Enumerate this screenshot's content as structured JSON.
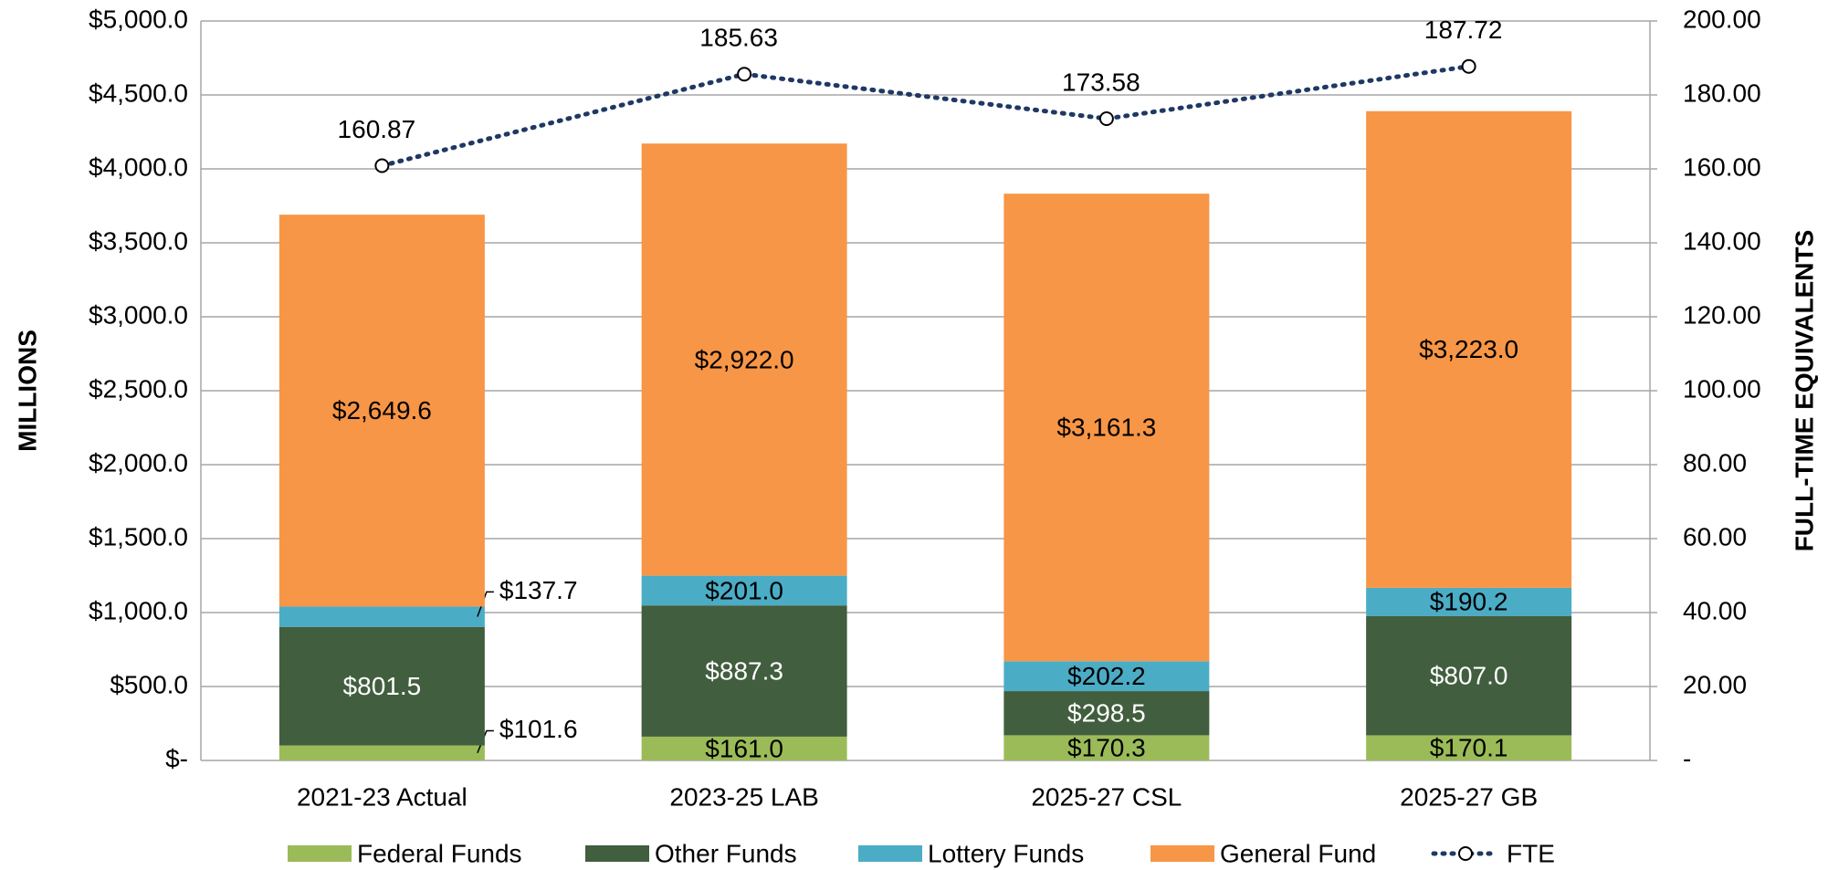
{
  "chart_data": {
    "type": "bar",
    "stacked": true,
    "categories": [
      "2021-23 Actual",
      "2023-25 LAB",
      "2025-27 CSL",
      "2025-27 GB"
    ],
    "ylabel": "MILLIONS",
    "y2label": "FULL-TIME EQUIVALENTS",
    "ylim": [
      0,
      5000
    ],
    "yticks": [
      {
        "value": 0,
        "label": "$-"
      },
      {
        "value": 500,
        "label": "$500.0"
      },
      {
        "value": 1000,
        "label": "$1,000.0"
      },
      {
        "value": 1500,
        "label": "$1,500.0"
      },
      {
        "value": 2000,
        "label": "$2,000.0"
      },
      {
        "value": 2500,
        "label": "$2,500.0"
      },
      {
        "value": 3000,
        "label": "$3,000.0"
      },
      {
        "value": 3500,
        "label": "$3,500.0"
      },
      {
        "value": 4000,
        "label": "$4,000.0"
      },
      {
        "value": 4500,
        "label": "$4,500.0"
      },
      {
        "value": 5000,
        "label": "$5,000.0"
      }
    ],
    "y2lim": [
      0,
      200
    ],
    "y2ticks": [
      {
        "value": 0,
        "label": "-"
      },
      {
        "value": 20,
        "label": "20.00"
      },
      {
        "value": 40,
        "label": "40.00"
      },
      {
        "value": 60,
        "label": "60.00"
      },
      {
        "value": 80,
        "label": "80.00"
      },
      {
        "value": 100,
        "label": "100.00"
      },
      {
        "value": 120,
        "label": "120.00"
      },
      {
        "value": 140,
        "label": "140.00"
      },
      {
        "value": 160,
        "label": "160.00"
      },
      {
        "value": 180,
        "label": "180.00"
      },
      {
        "value": 200,
        "label": "200.00"
      }
    ],
    "grid": true,
    "legend": "bottom",
    "series": [
      {
        "name": "Federal Funds",
        "color": "#9bbb59",
        "values": [
          101.6,
          161.0,
          170.3,
          170.1
        ],
        "value_labels": [
          "$101.6",
          "$161.0",
          "$170.3",
          "$170.1"
        ]
      },
      {
        "name": "Other Funds",
        "color": "#415e3e",
        "values": [
          801.5,
          887.3,
          298.5,
          807.0
        ],
        "value_labels": [
          "$801.5",
          "$887.3",
          "$298.5",
          "$807.0"
        ]
      },
      {
        "name": "Lottery Funds",
        "color": "#4bacc6",
        "values": [
          137.7,
          201.0,
          202.2,
          190.2
        ],
        "value_labels": [
          "$137.7",
          "$201.0",
          "$202.2",
          "$190.2"
        ]
      },
      {
        "name": "General Fund",
        "color": "#f79646",
        "values": [
          2649.6,
          2922.0,
          3161.3,
          3223.0
        ],
        "value_labels": [
          "$2,649.6",
          "$2,922.0",
          "$3,161.3",
          "$3,223.0"
        ]
      },
      {
        "name": "FTE",
        "type": "line",
        "axis": "y2",
        "color": "#1f3864",
        "values": [
          160.87,
          185.63,
          173.58,
          187.72
        ]
      }
    ]
  }
}
